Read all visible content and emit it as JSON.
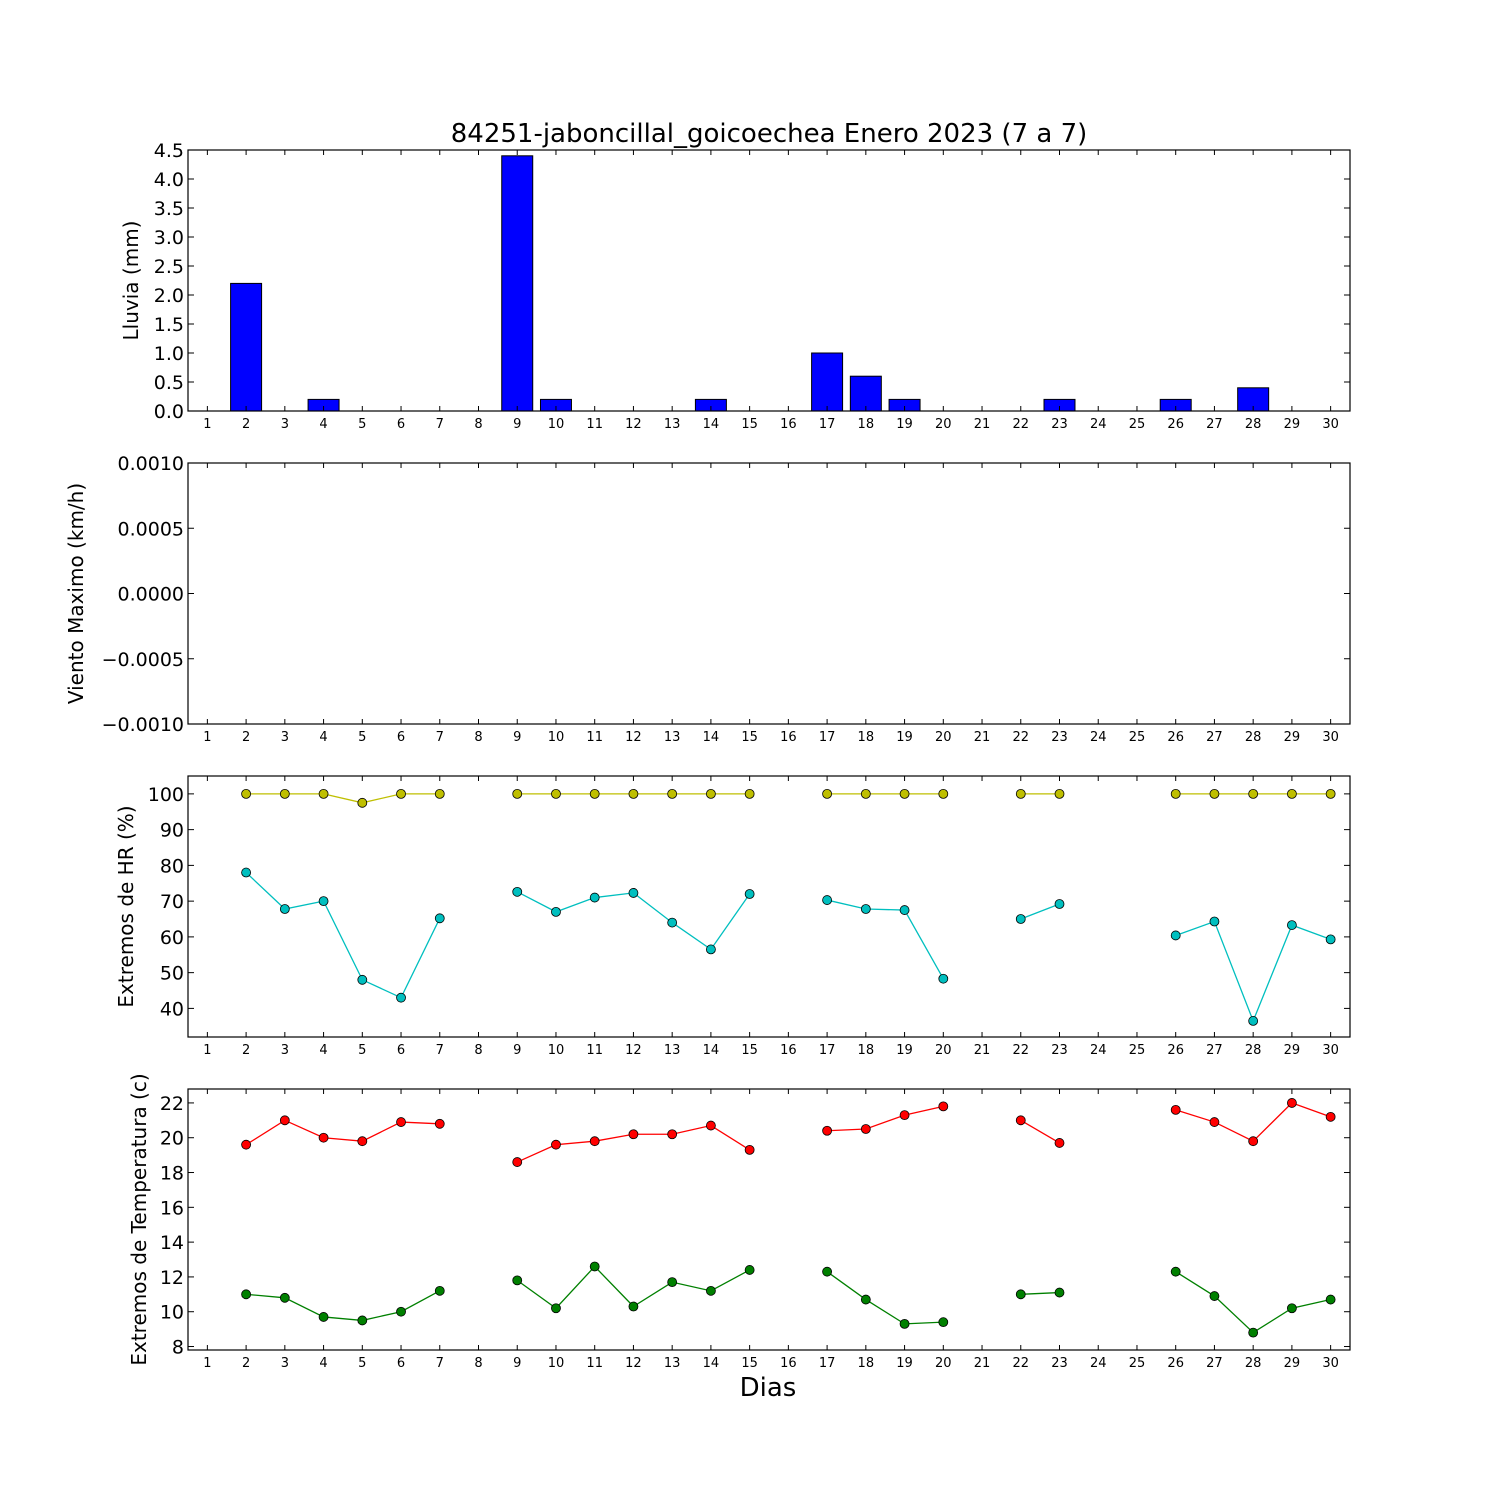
{
  "chart_data": {
    "title": "84251-jaboncillal_goicoechea Enero 2023  (7 a 7)",
    "xlabel": "Dias",
    "x_ticks": [
      1,
      2,
      3,
      4,
      5,
      6,
      7,
      8,
      9,
      10,
      11,
      12,
      13,
      14,
      15,
      16,
      17,
      18,
      19,
      20,
      21,
      22,
      23,
      24,
      25,
      26,
      27,
      28,
      29,
      30
    ],
    "subplots": [
      {
        "type": "bar",
        "ylabel": "Lluvia (mm)",
        "ylim": [
          0,
          4.5
        ],
        "yticks": [
          "0.0",
          "0.5",
          "1.0",
          "1.5",
          "2.0",
          "2.5",
          "3.0",
          "3.5",
          "4.0",
          "4.5"
        ],
        "ytick_values": [
          0,
          0.5,
          1,
          1.5,
          2,
          2.5,
          3,
          3.5,
          4,
          4.5
        ],
        "color": "#0000ff",
        "values": [
          0,
          2.2,
          0,
          0.2,
          0,
          0,
          0,
          0,
          4.4,
          0.2,
          0,
          0,
          0,
          0.2,
          0,
          0,
          1.0,
          0.6,
          0.2,
          0,
          0,
          0,
          0.2,
          0,
          0,
          0.2,
          0,
          0.4,
          0,
          0
        ]
      },
      {
        "type": "line",
        "ylabel": "Viento Maximo (km/h)",
        "ylim": [
          -0.001,
          0.001
        ],
        "yticks": [
          "−0.0010",
          "−0.0005",
          "0.0000",
          "0.0005",
          "0.0010"
        ],
        "ytick_values": [
          -0.001,
          -0.0005,
          0,
          0.0005,
          0.001
        ],
        "series": []
      },
      {
        "type": "line",
        "ylabel": "Extremos de HR (%)",
        "ylim": [
          32,
          105
        ],
        "yticks": [
          "40",
          "50",
          "60",
          "70",
          "80",
          "90",
          "100"
        ],
        "ytick_values": [
          40,
          50,
          60,
          70,
          80,
          90,
          100
        ],
        "series": [
          {
            "color": "#bfbf00",
            "values": [
              null,
              100,
              100,
              100,
              97.5,
              100,
              100,
              null,
              100,
              100,
              100,
              100,
              100,
              100,
              100,
              null,
              100,
              100,
              100,
              100,
              null,
              100,
              100,
              null,
              null,
              100,
              100,
              100,
              100,
              100
            ]
          },
          {
            "color": "#00bfbf",
            "values": [
              null,
              78,
              67.8,
              70,
              48,
              43,
              65.2,
              null,
              72.6,
              67,
              71,
              72.3,
              64,
              56.5,
              72,
              null,
              70.3,
              67.8,
              67.5,
              48.3,
              null,
              65,
              69.2,
              null,
              null,
              60.4,
              64.3,
              36.5,
              63.3,
              59.3
            ]
          }
        ]
      },
      {
        "type": "line",
        "ylabel": "Extremos de Temperatura (c)",
        "ylim": [
          7.8,
          22.8
        ],
        "yticks": [
          "8",
          "10",
          "12",
          "14",
          "16",
          "18",
          "20",
          "22"
        ],
        "ytick_values": [
          8,
          10,
          12,
          14,
          16,
          18,
          20,
          22
        ],
        "series": [
          {
            "color": "#ff0000",
            "values": [
              null,
              19.6,
              21,
              20,
              19.8,
              20.9,
              20.8,
              null,
              18.6,
              19.6,
              19.8,
              20.2,
              20.2,
              20.7,
              19.3,
              null,
              20.4,
              20.5,
              21.3,
              21.8,
              null,
              21,
              19.7,
              null,
              null,
              21.6,
              20.9,
              19.8,
              22,
              21.2
            ]
          },
          {
            "color": "#008000",
            "values": [
              null,
              11,
              10.8,
              9.7,
              9.5,
              10,
              11.2,
              null,
              11.8,
              10.2,
              12.6,
              10.3,
              11.7,
              11.2,
              12.4,
              null,
              12.3,
              10.7,
              9.3,
              9.4,
              null,
              11,
              11.1,
              null,
              null,
              12.3,
              10.9,
              8.8,
              10.2,
              10.7
            ]
          }
        ]
      }
    ]
  }
}
